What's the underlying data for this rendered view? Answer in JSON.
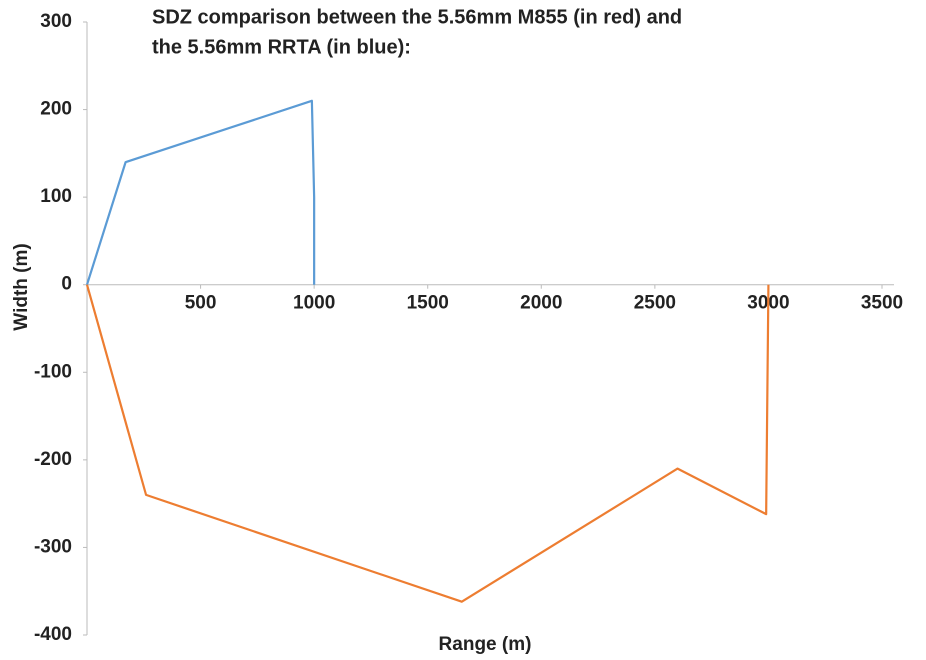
{
  "chart_data": {
    "type": "line",
    "title": [
      "SDZ comparison between the 5.56mm M855 (in red) and",
      "the 5.56mm RRTA (in blue):"
    ],
    "x_label": "Range (m)",
    "y_label": "Width (m)",
    "xlim": [
      0,
      3500
    ],
    "xticks": [
      500,
      1000,
      1500,
      2000,
      2500,
      3000,
      3500
    ],
    "ylim": [
      -400,
      300
    ],
    "yticks": [
      300,
      200,
      100,
      0,
      -100,
      -200,
      -300,
      -400
    ],
    "series": [
      {
        "color": "#5b9bd5",
        "x": [
          0,
          170,
          990,
          1000,
          1000
        ],
        "values": [
          0,
          140,
          210,
          100,
          0
        ]
      },
      {
        "color": "#ed7d31",
        "x": [
          0,
          260,
          1650,
          2600,
          2990,
          3000
        ],
        "values": [
          0,
          -240,
          -362,
          -210,
          -262,
          0
        ]
      }
    ]
  }
}
